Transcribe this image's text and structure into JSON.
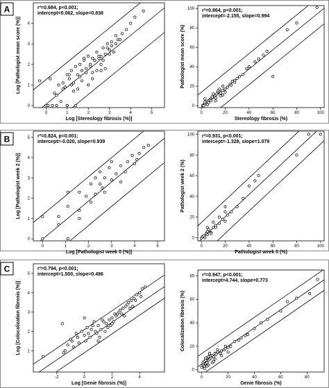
{
  "panel_labels": [
    "A",
    "B",
    "C"
  ],
  "chart_data": [
    {
      "panel": "A",
      "type": "scatter",
      "xlabel": "Log [Stereology fibrosis (%)]",
      "ylabel": "Log [Pathologist mean score (%)]",
      "xlim": [
        -0.6,
        5.6
      ],
      "ylim": [
        -0.1,
        5.0
      ],
      "xticks": [
        0,
        1,
        2,
        3,
        4,
        5
      ],
      "yticks": [
        0,
        1,
        2,
        3,
        4
      ],
      "annotation": [
        "r²=0.684, p<0.001;",
        "intercept=0.062, slope=0.838"
      ],
      "fit": {
        "intercept": 0.062,
        "slope": 0.838,
        "band": 1.2
      },
      "x": [
        -0.3,
        0.2,
        0.4,
        0.6,
        0.8,
        1.0,
        1.1,
        1.2,
        1.3,
        1.4,
        1.5,
        1.6,
        1.7,
        1.8,
        1.9,
        2.0,
        2.1,
        2.2,
        2.3,
        2.4,
        2.5,
        2.6,
        2.7,
        2.8,
        2.9,
        3.0,
        3.1,
        3.2,
        3.3,
        3.4,
        3.6,
        3.8,
        4.0,
        4.2,
        4.6,
        0.0,
        0.1,
        0.3,
        0.5,
        0.7,
        0.9,
        1.0,
        1.3,
        1.5,
        1.7,
        2.0,
        2.2,
        2.4,
        2.6,
        2.8,
        3.0,
        1.2,
        1.8,
        2.2,
        2.5,
        2.9,
        3.3,
        0.8,
        1.1,
        1.6,
        2.1,
        2.7,
        3.1,
        3.5,
        1.9,
        2.3,
        0.5,
        1.4,
        2.6
      ],
      "y": [
        1.2,
        1.3,
        0.6,
        1.0,
        0.8,
        1.5,
        1.3,
        1.7,
        1.1,
        1.9,
        1.5,
        2.0,
        1.7,
        2.2,
        1.8,
        2.4,
        2.0,
        2.3,
        2.2,
        2.6,
        2.3,
        2.4,
        2.8,
        2.5,
        3.0,
        2.7,
        3.1,
        2.6,
        3.4,
        3.2,
        3.5,
        3.7,
        4.0,
        4.3,
        4.6,
        0.0,
        0.0,
        0.0,
        0.5,
        0.2,
        0.9,
        0.0,
        0.7,
        0.8,
        1.2,
        1.0,
        1.3,
        1.7,
        2.0,
        1.8,
        2.5,
        1.0,
        2.3,
        1.6,
        2.4,
        2.8,
        3.0,
        1.1,
        1.5,
        1.4,
        1.9,
        2.2,
        2.9,
        3.2,
        1.6,
        2.2,
        0.0,
        0.0,
        1.7
      ]
    },
    {
      "panel": "A2",
      "type": "scatter",
      "xlabel": "Stereology fibrosis (%)",
      "ylabel": "Pathologist mean score (%)",
      "xlim": [
        -3,
        103
      ],
      "ylim": [
        -2,
        103
      ],
      "xticks": [
        0,
        20,
        40,
        60,
        80,
        100
      ],
      "yticks": [
        0,
        20,
        40,
        60,
        80,
        100
      ],
      "annotation": [
        "r²=0.864, p<0.001;",
        "intercept=-2.155, slope=0.994"
      ],
      "fit": {
        "intercept": -2.155,
        "slope": 0.994,
        "band": 16
      },
      "x": [
        1,
        2,
        3,
        4,
        5,
        6,
        7,
        8,
        9,
        10,
        11,
        12,
        13,
        14,
        15,
        16,
        18,
        20,
        22,
        24,
        26,
        28,
        30,
        32,
        35,
        38,
        40,
        45,
        48,
        52,
        55,
        60,
        72,
        80,
        97,
        2,
        3,
        5,
        8,
        10,
        12,
        14,
        16,
        18,
        20,
        3,
        6,
        9,
        12,
        15,
        18,
        25,
        28
      ],
      "y": [
        0,
        1,
        2,
        3,
        4,
        5,
        6,
        7,
        8,
        9,
        10,
        11,
        12,
        14,
        15,
        13,
        16,
        17,
        19,
        22,
        25,
        26,
        28,
        30,
        32,
        38,
        40,
        45,
        48,
        52,
        56,
        30,
        78,
        85,
        101,
        0,
        4,
        1,
        5,
        12,
        8,
        15,
        10,
        20,
        14,
        7,
        3,
        9,
        5,
        17,
        11,
        21,
        24
      ]
    },
    {
      "panel": "B",
      "type": "scatter",
      "xlabel": "Log [Pathologist week 0 (%)]",
      "ylabel": "Log [Pathologist week 2 (%)]",
      "xlim": [
        -0.4,
        5.3
      ],
      "ylim": [
        -0.1,
        5.3
      ],
      "xticks": [
        0,
        1,
        2,
        3,
        4,
        5
      ],
      "yticks": [
        0,
        1,
        2,
        3,
        4,
        5
      ],
      "annotation": [
        "r²=0.824, p<0.001;",
        "intercept=-0.020, slope=0.939"
      ],
      "fit": {
        "intercept": -0.02,
        "slope": 0.939,
        "band": 1.2
      },
      "x": [
        0,
        0,
        0.7,
        0.7,
        1.1,
        1.1,
        1.1,
        1.6,
        1.6,
        1.6,
        2.1,
        2.1,
        2.3,
        2.3,
        2.5,
        2.5,
        2.7,
        2.7,
        2.9,
        3.0,
        3.0,
        3.2,
        3.4,
        3.4,
        3.7,
        3.9,
        4.0,
        4.2,
        4.4,
        4.6,
        1.9,
        2.6,
        3.6,
        4.1
      ],
      "y": [
        0,
        1.1,
        1.1,
        0.7,
        2.3,
        1.6,
        0,
        1.4,
        2.3,
        1.0,
        2.7,
        1.8,
        3.0,
        2.2,
        3.3,
        2.7,
        3.0,
        2.3,
        3.5,
        3.8,
        2.9,
        3.2,
        3.6,
        2.8,
        3.8,
        4.1,
        3.7,
        4.2,
        4.5,
        4.6,
        2.1,
        2.5,
        3.3,
        3.9
      ]
    },
    {
      "panel": "B2",
      "type": "scatter",
      "xlabel": "Pathologist week 0 (%)",
      "ylabel": "Pathologist week 2 (%)",
      "xlim": [
        -3,
        103
      ],
      "ylim": [
        -3,
        103
      ],
      "xticks": [
        0,
        20,
        40,
        60,
        80,
        100
      ],
      "yticks": [
        0,
        20,
        40,
        60,
        80,
        100
      ],
      "annotation": [
        "r²=0.931, p<0.001;",
        "intercept=-1.328, slope=1.079"
      ],
      "fit": {
        "intercept": -1.328,
        "slope": 1.079,
        "band": 16
      },
      "x": [
        0,
        1,
        2,
        3,
        4,
        5,
        5,
        6,
        8,
        10,
        10,
        12,
        15,
        15,
        18,
        20,
        20,
        22,
        25,
        30,
        35,
        40,
        45,
        48,
        80,
        90,
        100,
        5,
        8,
        12,
        20
      ],
      "y": [
        0,
        1,
        2,
        0,
        4,
        3,
        10,
        8,
        5,
        10,
        15,
        12,
        20,
        14,
        18,
        25,
        30,
        22,
        25,
        30,
        38,
        50,
        55,
        60,
        80,
        100,
        100,
        6,
        4,
        10,
        16
      ]
    },
    {
      "panel": "C",
      "type": "scatter",
      "xlabel": "Log [Genie fibrosis (%)]",
      "ylabel": "Log [Colocalization fibrosis (%)]",
      "xlim": [
        -3.7,
        5.8
      ],
      "ylim": [
        -0.1,
        5.5
      ],
      "xticks": [
        -2,
        0,
        2,
        4
      ],
      "yticks": [
        1,
        2,
        3,
        4,
        5
      ],
      "annotation": [
        "r²=0.794, p<0.001;",
        "intercept=1.500, slope=0.486"
      ],
      "fit": {
        "intercept": 1.5,
        "slope": 0.486,
        "band": 0.6
      },
      "x": [
        -3.0,
        -1.6,
        -1.4,
        -1.0,
        -0.8,
        -0.6,
        -0.4,
        -0.2,
        0.0,
        0.2,
        0.4,
        0.6,
        0.8,
        1.0,
        1.2,
        1.4,
        1.6,
        1.8,
        2.0,
        2.2,
        2.4,
        2.6,
        2.8,
        3.0,
        3.2,
        3.4,
        3.6,
        3.8,
        4.0,
        4.2,
        4.4,
        -1.2,
        -0.5,
        0.1,
        0.5,
        0.9,
        1.3,
        1.7,
        2.1,
        2.5,
        2.9,
        3.3,
        3.7,
        4.1,
        -0.9,
        0.3,
        0.7,
        1.1,
        1.5,
        1.9,
        2.3,
        2.7,
        3.1,
        3.5,
        -1.5,
        0.0,
        1.0,
        2.0
      ],
      "y": [
        0.7,
        2.4,
        1.0,
        1.6,
        1.2,
        1.9,
        1.4,
        2.0,
        1.8,
        2.2,
        1.7,
        2.3,
        2.0,
        2.3,
        2.1,
        2.5,
        2.4,
        2.6,
        2.7,
        2.9,
        2.9,
        3.1,
        3.2,
        3.3,
        3.5,
        3.6,
        3.7,
        3.9,
        4.0,
        4.2,
        4.3,
        1.3,
        1.7,
        1.5,
        2.1,
        1.9,
        2.6,
        2.2,
        2.5,
        3.0,
        2.8,
        3.2,
        3.6,
        3.8,
        1.5,
        1.9,
        2.5,
        1.7,
        2.0,
        2.3,
        2.8,
        2.9,
        3.4,
        3.3,
        0.9,
        2.7,
        1.5,
        2.4
      ]
    },
    {
      "panel": "C2",
      "type": "scatter",
      "xlabel": "Genie fibrosis (%)",
      "ylabel": "Colocalization fibrosis (%)",
      "xlim": [
        -3,
        93
      ],
      "ylim": [
        -2,
        85
      ],
      "xticks": [
        0,
        20,
        40,
        60,
        80
      ],
      "yticks": [
        0,
        20,
        40,
        60,
        80
      ],
      "annotation": [
        "r²=0.947, p<0.001;",
        "intercept=4.744, slope=0.773"
      ],
      "fit": {
        "intercept": 4.744,
        "slope": 0.773,
        "band": 9
      },
      "x": [
        0,
        1,
        1,
        2,
        2,
        3,
        3,
        4,
        4,
        5,
        5,
        6,
        7,
        8,
        9,
        10,
        11,
        12,
        14,
        15,
        17,
        18,
        20,
        22,
        25,
        28,
        30,
        33,
        35,
        40,
        45,
        50,
        60,
        65,
        72,
        82,
        88,
        2,
        3,
        5,
        6,
        8,
        10,
        12,
        15,
        18,
        20,
        3,
        4,
        6,
        9
      ],
      "y": [
        2,
        4,
        6,
        3,
        7,
        5,
        9,
        6,
        10,
        8,
        11,
        9,
        10,
        12,
        11,
        14,
        13,
        15,
        14,
        16,
        17,
        18,
        19,
        20,
        24,
        25,
        27,
        29,
        30,
        35,
        40,
        43,
        50,
        58,
        61,
        65,
        77,
        1,
        8,
        4,
        13,
        6,
        9,
        17,
        12,
        20,
        15,
        10,
        3,
        14,
        7
      ]
    }
  ]
}
